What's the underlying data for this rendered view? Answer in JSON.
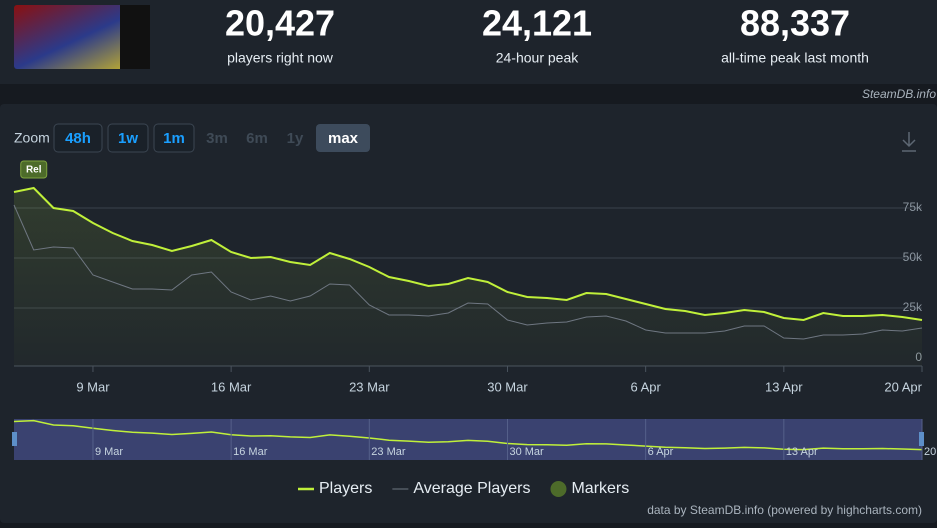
{
  "header": {
    "stats": [
      {
        "value": "20,427",
        "label": "players right now"
      },
      {
        "value": "24,121",
        "label": "24-hour peak"
      },
      {
        "value": "88,337",
        "label": "all-time peak last month"
      }
    ],
    "source": "SteamDB.info"
  },
  "zoom": {
    "label": "Zoom",
    "buttons": [
      "48h",
      "1w",
      "1m",
      "3m",
      "6m",
      "1y",
      "max"
    ]
  },
  "chart_data": {
    "type": "line",
    "categories": [
      null,
      null,
      null,
      null,
      "9 Mar",
      null,
      null,
      null,
      null,
      null,
      null,
      "16 Mar",
      null,
      null,
      null,
      null,
      null,
      null,
      "23 Mar",
      null,
      null,
      null,
      null,
      null,
      null,
      "30 Mar",
      null,
      null,
      null,
      null,
      null,
      null,
      "6 Apr",
      null,
      null,
      null,
      null,
      null,
      null,
      "13 Apr",
      null,
      null,
      null,
      null,
      null,
      null,
      "20 Apr"
    ],
    "series": [
      {
        "name": "Players",
        "color": "#c0f03a",
        "values": [
          83000,
          85000,
          75000,
          73500,
          67500,
          62500,
          58500,
          56500,
          53500,
          56000,
          59000,
          53000,
          50000,
          50500,
          48000,
          46500,
          52500,
          49500,
          45500,
          40500,
          38500,
          36000,
          37000,
          40000,
          38000,
          33000,
          30500,
          30000,
          29000,
          32500,
          32000,
          29500,
          27000,
          24500,
          23500,
          21500,
          22500,
          24000,
          23000,
          20000,
          19000,
          22500,
          21000,
          21000,
          21500,
          20500,
          19000
        ]
      },
      {
        "name": "Average Players",
        "color": "#6f7782",
        "values": [
          76500,
          54000,
          55500,
          55000,
          41500,
          38000,
          34500,
          34500,
          34000,
          41500,
          43000,
          33000,
          29000,
          31000,
          28500,
          31000,
          37000,
          36500,
          26500,
          21500,
          21500,
          21000,
          22500,
          27500,
          27000,
          19000,
          16500,
          17500,
          18000,
          20500,
          21000,
          18500,
          14000,
          12500,
          12500,
          12500,
          13500,
          16000,
          16000,
          10000,
          9500,
          11500,
          11500,
          12000,
          14000,
          13500,
          15000
        ]
      }
    ],
    "markers_legend": "Markers",
    "annotations": [
      {
        "text": "Rel"
      }
    ],
    "ylim": [
      0,
      100000
    ],
    "yticks": [
      {
        "value": 0,
        "label": "0"
      },
      {
        "value": 25000,
        "label": "25k"
      },
      {
        "value": 50000,
        "label": "50k"
      },
      {
        "value": 75000,
        "label": "75k"
      }
    ],
    "grid": true,
    "credits": "data by SteamDB.info (powered by highcharts.com)"
  }
}
